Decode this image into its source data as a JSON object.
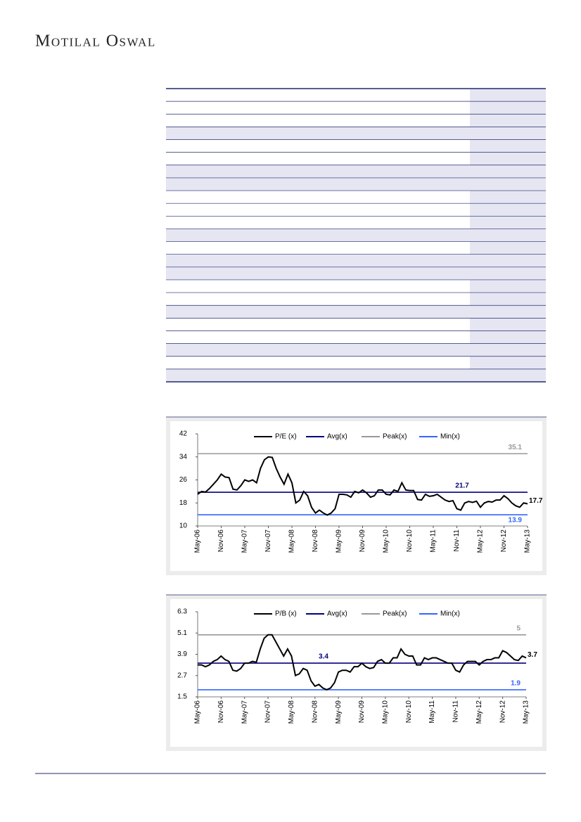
{
  "header": {
    "title": "Motilal Oswal"
  },
  "chart_data": [
    {
      "type": "line",
      "categories": [
        "May-06",
        null,
        null,
        null,
        null,
        null,
        "Nov-06",
        null,
        null,
        null,
        null,
        null,
        "May-07",
        null,
        null,
        null,
        null,
        null,
        "Nov-07",
        null,
        null,
        null,
        null,
        null,
        "May-08",
        null,
        null,
        null,
        null,
        null,
        "Nov-08",
        null,
        null,
        null,
        null,
        null,
        "May-09",
        null,
        null,
        null,
        null,
        null,
        "Nov-09",
        null,
        null,
        null,
        null,
        null,
        "May-10",
        null,
        null,
        null,
        null,
        null,
        "Nov-10",
        null,
        null,
        null,
        null,
        null,
        "May-11",
        null,
        null,
        null,
        null,
        null,
        "Nov-11",
        null,
        null,
        null,
        null,
        null,
        "May-12",
        null,
        null,
        null,
        null,
        null,
        "Nov-12",
        null,
        null,
        null,
        null,
        null,
        "May-13"
      ],
      "series": [
        {
          "name": "P/E (x)",
          "color": "#000000",
          "values": [
            21,
            22,
            21.8,
            23,
            24.5,
            26,
            28,
            27,
            26.8,
            22.8,
            22.5,
            24,
            26,
            25.5,
            26,
            25,
            30,
            33,
            34,
            33.8,
            30,
            27,
            24.5,
            28,
            25,
            18,
            19,
            22,
            20.5,
            16.5,
            14.5,
            15.5,
            14.5,
            13.8,
            14.5,
            16,
            21,
            21,
            20.8,
            20,
            22,
            21.5,
            22.5,
            21.5,
            20,
            20.5,
            22.5,
            22.5,
            21,
            20.8,
            22.5,
            22,
            25,
            22.5,
            22.3,
            22.3,
            19.2,
            19,
            21,
            20.3,
            20.5,
            21,
            20,
            19,
            18.5,
            18.8,
            16,
            15.5,
            18,
            18.5,
            18.2,
            18.6,
            16.5,
            18,
            18.5,
            18.3,
            19,
            19,
            20.5,
            19.5,
            18,
            17,
            16.5,
            18,
            17.7
          ]
        }
      ],
      "reference_lines": [
        {
          "name": "Avg(x)",
          "color": "#000080",
          "value": 21.7
        },
        {
          "name": "Peak(x)",
          "color": "#999999",
          "value": 35.1
        },
        {
          "name": "Min(x)",
          "color": "#3366ff",
          "value": 13.9
        }
      ],
      "ylim": [
        10,
        42
      ],
      "yticks": [
        10,
        18,
        26,
        34,
        42
      ]
    },
    {
      "type": "line",
      "categories": [
        "May-06",
        null,
        null,
        null,
        null,
        null,
        "Nov-06",
        null,
        null,
        null,
        null,
        null,
        "May-07",
        null,
        null,
        null,
        null,
        null,
        "Nov-07",
        null,
        null,
        null,
        null,
        null,
        "May-08",
        null,
        null,
        null,
        null,
        null,
        "Nov-08",
        null,
        null,
        null,
        null,
        null,
        "May-09",
        null,
        null,
        null,
        null,
        null,
        "Nov-09",
        null,
        null,
        null,
        null,
        null,
        "May-10",
        null,
        null,
        null,
        null,
        null,
        "Nov-10",
        null,
        null,
        null,
        null,
        null,
        "May-11",
        null,
        null,
        null,
        null,
        null,
        "Nov-11",
        null,
        null,
        null,
        null,
        null,
        "May-12",
        null,
        null,
        null,
        null,
        null,
        "Nov-12",
        null,
        null,
        null,
        null,
        null,
        "May-13"
      ],
      "series": [
        {
          "name": "P/B (x)",
          "color": "#000000",
          "values": [
            3.3,
            3.3,
            3.2,
            3.3,
            3.5,
            3.6,
            3.8,
            3.6,
            3.5,
            3.0,
            2.95,
            3.1,
            3.4,
            3.4,
            3.5,
            3.45,
            4.2,
            4.8,
            5.0,
            5.0,
            4.6,
            4.2,
            3.8,
            4.2,
            3.8,
            2.7,
            2.8,
            3.1,
            3.0,
            2.4,
            2.1,
            2.2,
            2.0,
            1.9,
            2.0,
            2.3,
            2.9,
            3.0,
            3.0,
            2.9,
            3.2,
            3.2,
            3.4,
            3.2,
            3.1,
            3.15,
            3.5,
            3.6,
            3.4,
            3.4,
            3.7,
            3.7,
            4.2,
            3.9,
            3.8,
            3.8,
            3.3,
            3.3,
            3.7,
            3.6,
            3.7,
            3.7,
            3.6,
            3.5,
            3.4,
            3.4,
            3.0,
            2.9,
            3.3,
            3.5,
            3.5,
            3.5,
            3.3,
            3.5,
            3.6,
            3.6,
            3.7,
            3.7,
            4.1,
            4.0,
            3.8,
            3.6,
            3.55,
            3.8,
            3.7
          ]
        }
      ],
      "reference_lines": [
        {
          "name": "Avg(x)",
          "color": "#000080",
          "value": 3.4
        },
        {
          "name": "Peak(x)",
          "color": "#999999",
          "value": 5.0
        },
        {
          "name": "Min(x)",
          "color": "#3366ff",
          "value": 1.9
        }
      ],
      "ylim": [
        1.5,
        6.3
      ],
      "yticks": [
        1.5,
        2.7,
        3.9,
        5.1,
        6.3
      ]
    }
  ]
}
